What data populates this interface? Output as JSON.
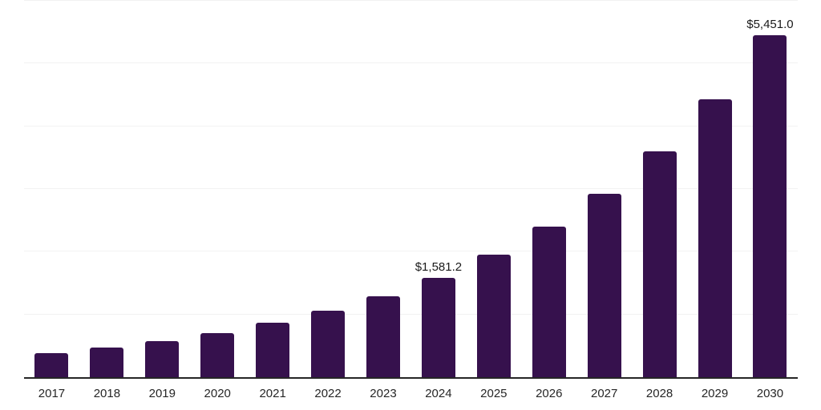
{
  "chart": {
    "background_color": "#ffffff",
    "bar_color": "#36114d",
    "axis_line_color": "#262626",
    "gridline_color": "#f2f2f2",
    "tick_label_color": "#262626",
    "value_label_color": "#1a1a1a"
  },
  "chart_data": {
    "type": "bar",
    "title": "",
    "xlabel": "",
    "ylabel": "",
    "categories": [
      "2017",
      "2018",
      "2019",
      "2020",
      "2021",
      "2022",
      "2023",
      "2024",
      "2025",
      "2026",
      "2027",
      "2028",
      "2029",
      "2030"
    ],
    "values": [
      385,
      470,
      572,
      705,
      870,
      1060,
      1287,
      1581.2,
      1950,
      2398,
      2921,
      3594,
      4427,
      5451
    ],
    "value_labels": {
      "2024": "$1,581.2",
      "2030": "$5,451.0"
    },
    "ylim": [
      0,
      6000
    ],
    "gridline_step": 1000,
    "grid": "on",
    "y_axis_tick_labels_visible": false,
    "legend_position": "none",
    "bar_orientation": "vertical"
  }
}
